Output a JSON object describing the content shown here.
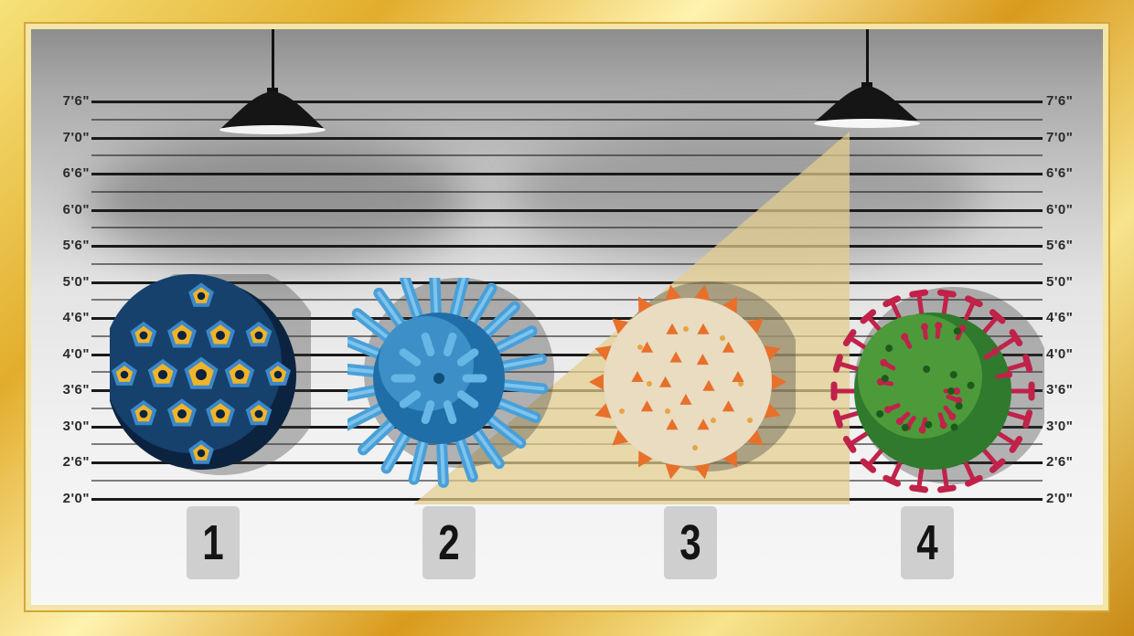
{
  "height_chart": {
    "left_labels": [
      "7'6\"",
      "7'0\"",
      "6'6\"",
      "6'0\"",
      "5'6\"",
      "5'0\"",
      "4'6\"",
      "4'0\"",
      "3'6\"",
      "3'0\"",
      "2'6\"",
      "2'0\""
    ],
    "right_labels": [
      "7'6\"",
      "7'0\"",
      "6'6\"",
      "6'0\"",
      "5'6\"",
      "5'0\"",
      "4'6\"",
      "4'0\"",
      "3'6\"",
      "3'0\"",
      "2'6\"",
      "2'0\""
    ]
  },
  "suspects": [
    {
      "number": "1",
      "virus": "blue-yellow-capsid-virus"
    },
    {
      "number": "2",
      "virus": "blue-spiky-virus"
    },
    {
      "number": "3",
      "virus": "orange-coronavirus"
    },
    {
      "number": "4",
      "virus": "green-red-coronavirus"
    }
  ],
  "colors": {
    "frame_gold": "#e2ad2c",
    "wall": "#e4e4e4",
    "lines": "#1a1a1a",
    "card": "#cfcfcf",
    "beam": "#d9c38a"
  },
  "icons": [
    "ceiling-lamp-icon",
    "virus-icon"
  ]
}
